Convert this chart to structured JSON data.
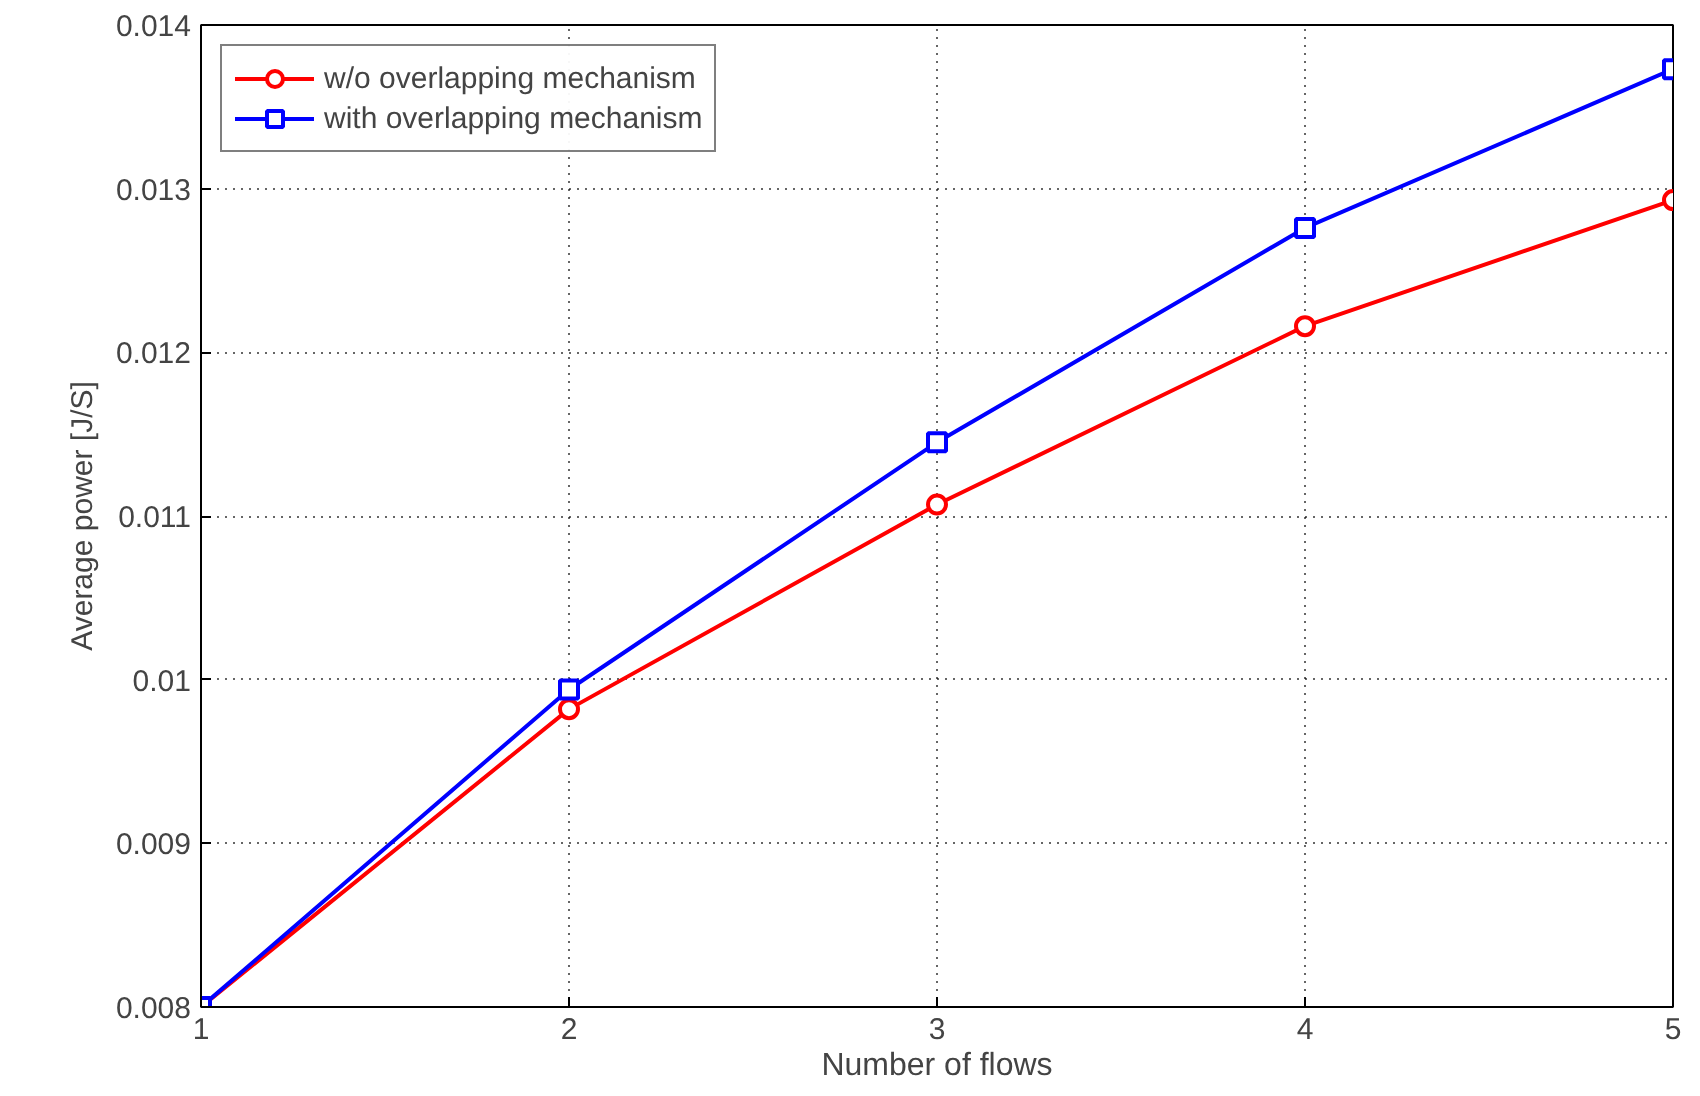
{
  "chart_data": {
    "type": "line",
    "xlabel": "Number of flows",
    "ylabel": "Average power [J/S]",
    "x": [
      1,
      2,
      3,
      4,
      5
    ],
    "series": [
      {
        "name": "w/o overlapping mechanism",
        "color": "#ff0000",
        "marker": "circle",
        "values": [
          0.008,
          0.00982,
          0.01107,
          0.01216,
          0.01293
        ]
      },
      {
        "name": "with overlapping mechanism",
        "color": "#0000ff",
        "marker": "square",
        "values": [
          0.008,
          0.00994,
          0.01145,
          0.01276,
          0.01373
        ]
      }
    ],
    "xlim": [
      1,
      5
    ],
    "ylim": [
      0.008,
      0.014
    ],
    "xticks": [
      1,
      2,
      3,
      4,
      5
    ],
    "yticks": [
      0.008,
      0.009,
      0.01,
      0.011,
      0.012,
      0.013,
      0.014
    ],
    "grid": true,
    "legend": "top left",
    "line_style": "solid"
  }
}
